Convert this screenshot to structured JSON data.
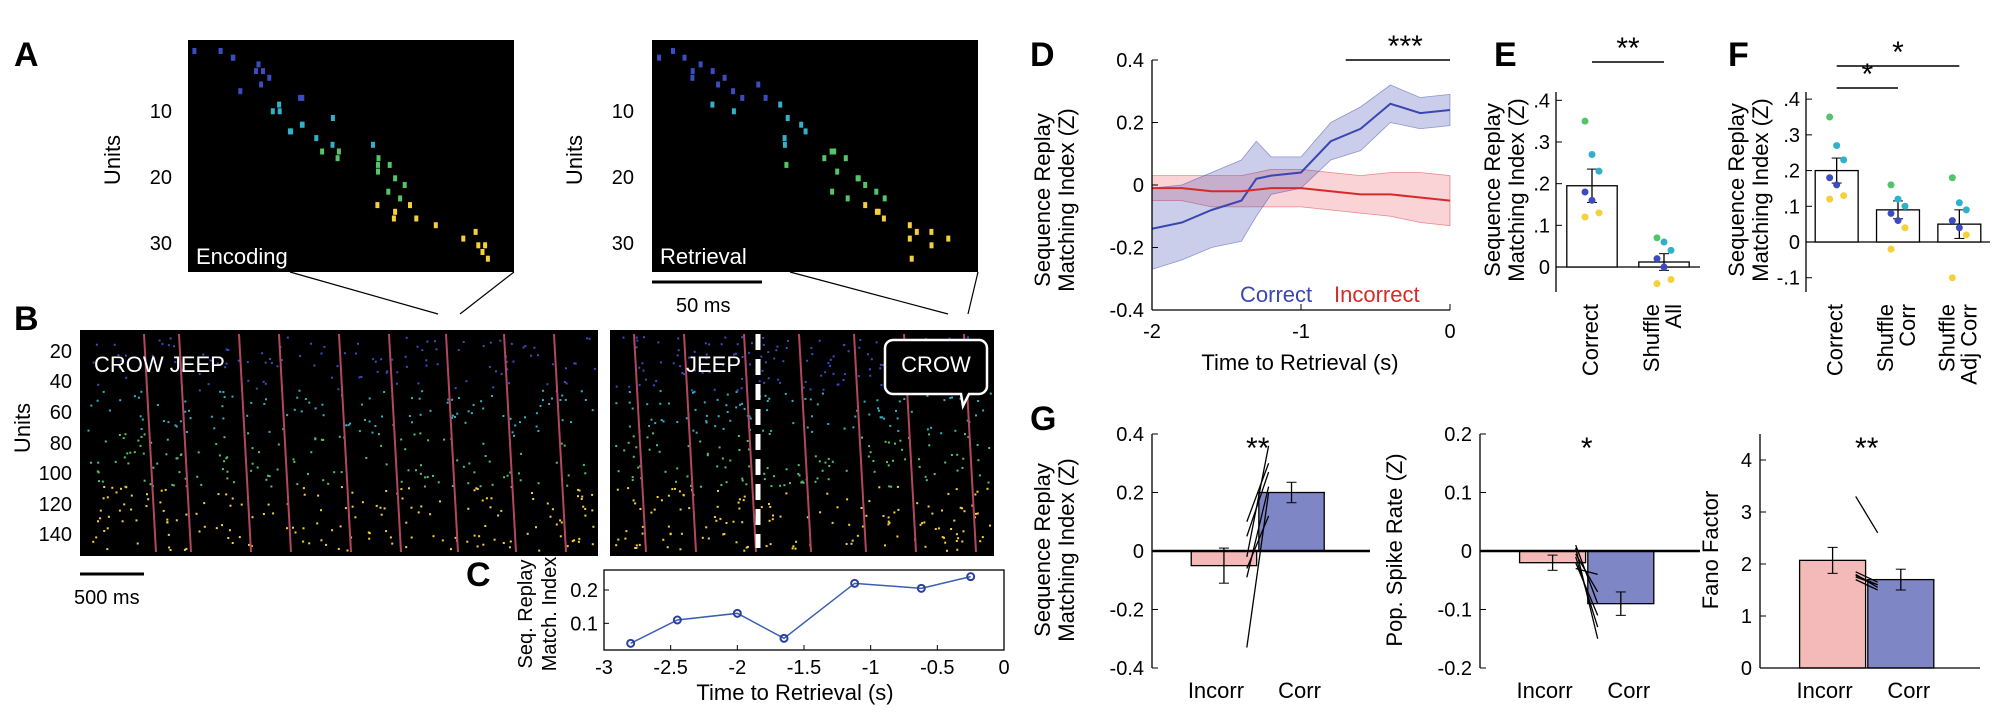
{
  "panel_letters": {
    "a": "A",
    "b": "B",
    "c": "C",
    "d": "D",
    "e": "E",
    "f": "F",
    "g": "G"
  },
  "panel_a": {
    "ylabel": "Units",
    "yticks": [
      "10",
      "20",
      "30"
    ],
    "enc_label": "Encoding",
    "ret_label": "Retrieval",
    "scale_label": "50 ms",
    "colors": [
      "#3b4cc0",
      "#31b1c9",
      "#52c469",
      "#f5d03b"
    ]
  },
  "panel_b": {
    "ylabel": "Units",
    "yticks": [
      "20",
      "40",
      "60",
      "80",
      "100",
      "120",
      "140"
    ],
    "left_text": "CROW JEEP",
    "right_text": "JEEP",
    "speech": "CROW",
    "scale_label": "500 ms"
  },
  "chart_data": [
    {
      "id": "C",
      "type": "line",
      "title": "",
      "ylabel": "Seq. Replay Match. Index",
      "xlabel": "Time to Retrieval (s)",
      "xticks": [
        "-3",
        "-2.5",
        "-2",
        "-1.5",
        "-1",
        "-0.5",
        "0"
      ],
      "yticks": [
        "0.1",
        "0.2"
      ],
      "x": [
        -2.8,
        -2.45,
        -2.0,
        -1.65,
        -1.12,
        -0.62,
        -0.25
      ],
      "values": [
        0.04,
        0.11,
        0.13,
        0.055,
        0.22,
        0.205,
        0.24
      ],
      "xlim": [
        -3,
        0
      ],
      "ylim": [
        0.02,
        0.26
      ]
    },
    {
      "id": "D",
      "type": "line",
      "ylabel": "Sequence Replay Matching Index (Z)",
      "xlabel": "Time to Retrieval (s)",
      "xticks": [
        "-2",
        "-1",
        "0"
      ],
      "yticks": [
        "0.4",
        "0.2",
        "0",
        "-0.2",
        "-0.4"
      ],
      "xlim": [
        -2,
        0
      ],
      "ylim": [
        -0.4,
        0.4
      ],
      "significance": "***",
      "legend": [
        "Correct",
        "Incorrect"
      ],
      "series": [
        {
          "name": "Correct",
          "color": "#3b47b0",
          "x": [
            -2,
            -1.8,
            -1.6,
            -1.4,
            -1.3,
            -1.2,
            -1.0,
            -0.8,
            -0.6,
            -0.4,
            -0.2,
            0
          ],
          "values": [
            -0.14,
            -0.12,
            -0.08,
            -0.05,
            0.02,
            0.03,
            0.04,
            0.14,
            0.18,
            0.26,
            0.23,
            0.24
          ],
          "err": [
            0.13,
            0.12,
            0.12,
            0.13,
            0.12,
            0.06,
            0.05,
            0.06,
            0.07,
            0.06,
            0.05,
            0.05
          ]
        },
        {
          "name": "Incorrect",
          "color": "#d62a2a",
          "x": [
            -2,
            -1.8,
            -1.6,
            -1.4,
            -1.2,
            -1.0,
            -0.8,
            -0.6,
            -0.4,
            -0.2,
            0
          ],
          "values": [
            -0.01,
            -0.01,
            -0.02,
            -0.02,
            -0.01,
            -0.01,
            -0.02,
            -0.03,
            -0.03,
            -0.04,
            -0.05
          ],
          "err": [
            0.04,
            0.04,
            0.05,
            0.05,
            0.06,
            0.06,
            0.06,
            0.06,
            0.07,
            0.08,
            0.08
          ]
        }
      ]
    },
    {
      "id": "E",
      "type": "bar",
      "ylabel": "Sequence Replay Matching Index (Z)",
      "categories": [
        "Correct",
        "Shuffle All"
      ],
      "values": [
        0.195,
        0.012
      ],
      "errors": [
        0.04,
        0.02
      ],
      "yticks": [
        "0",
        ".1",
        ".2",
        ".3",
        ".4"
      ],
      "ylim": [
        -0.06,
        0.42
      ],
      "significance": "**",
      "points": [
        [
          0.35,
          0.27,
          0.23,
          0.18,
          0.16,
          0.13,
          0.12
        ],
        [
          0.07,
          0.06,
          0.04,
          0.02,
          0.0,
          -0.03,
          -0.04
        ]
      ],
      "point_colors": [
        "#52c469",
        "#31b1c9",
        "#31b1c9",
        "#3b4cc0",
        "#3b4cc0",
        "#f5d03b",
        "#f5d03b"
      ]
    },
    {
      "id": "F",
      "type": "bar",
      "ylabel": "Sequence Replay Matching Index (Z)",
      "categories": [
        "Correct",
        "Shuffle Corr",
        "Shuffle Adj Corr"
      ],
      "values": [
        0.2,
        0.09,
        0.05
      ],
      "errors": [
        0.035,
        0.025,
        0.04
      ],
      "yticks": [
        "-.1",
        "0",
        ".1",
        ".2",
        ".3",
        ".4"
      ],
      "ylim": [
        -0.14,
        0.42
      ],
      "significance": [
        "*",
        "*"
      ],
      "points": [
        [
          0.35,
          0.27,
          0.23,
          0.18,
          0.16,
          0.13,
          0.12
        ],
        [
          0.16,
          0.12,
          0.1,
          0.08,
          0.06,
          0.04,
          -0.02
        ],
        [
          0.18,
          0.11,
          0.09,
          0.06,
          0.04,
          0.02,
          -0.1
        ]
      ],
      "point_colors": [
        "#52c469",
        "#31b1c9",
        "#31b1c9",
        "#3b4cc0",
        "#3b4cc0",
        "#f5d03b",
        "#f5d03b"
      ]
    },
    {
      "id": "G1",
      "type": "bar",
      "ylabel": "Sequence Replay Matching Index (Z)",
      "categories": [
        "Incorr",
        "Corr"
      ],
      "values": [
        -0.05,
        0.2
      ],
      "errors": [
        0.06,
        0.035
      ],
      "yticks": [
        "0.4",
        "0.2",
        "0",
        "-0.2",
        "-0.4"
      ],
      "ylim": [
        -0.4,
        0.4
      ],
      "significance": "**",
      "pairs": [
        [
          -0.33,
          0.2
        ],
        [
          -0.09,
          0.22
        ],
        [
          -0.02,
          0.36
        ],
        [
          0.05,
          0.27
        ],
        [
          0.1,
          0.3
        ],
        [
          -0.06,
          0.12
        ]
      ]
    },
    {
      "id": "G2",
      "type": "bar",
      "ylabel": "Pop. Spike Rate (Z)",
      "categories": [
        "Incorr",
        "Corr"
      ],
      "values": [
        -0.02,
        -0.09
      ],
      "errors": [
        0.013,
        0.02
      ],
      "yticks": [
        "0.2",
        "0.1",
        "0",
        "-0.1",
        "-0.2"
      ],
      "ylim": [
        -0.2,
        0.2
      ],
      "significance": "*",
      "pairs": [
        [
          0.005,
          -0.15
        ],
        [
          -0.01,
          -0.13
        ],
        [
          -0.02,
          -0.11
        ],
        [
          -0.005,
          -0.07
        ],
        [
          -0.03,
          -0.04
        ],
        [
          0.01,
          -0.09
        ]
      ]
    },
    {
      "id": "G3",
      "type": "bar",
      "ylabel": "Fano Factor",
      "categories": [
        "Incorr",
        "Corr"
      ],
      "values": [
        2.07,
        1.7
      ],
      "errors": [
        0.25,
        0.2
      ],
      "yticks": [
        "0",
        "1",
        "2",
        "3",
        "4"
      ],
      "ylim": [
        0,
        4.5
      ],
      "significance": "**",
      "pairs": [
        [
          3.3,
          2.6
        ],
        [
          1.85,
          1.65
        ],
        [
          1.8,
          1.55
        ],
        [
          1.75,
          1.6
        ],
        [
          1.7,
          1.5
        ],
        [
          1.78,
          1.6
        ]
      ]
    }
  ]
}
